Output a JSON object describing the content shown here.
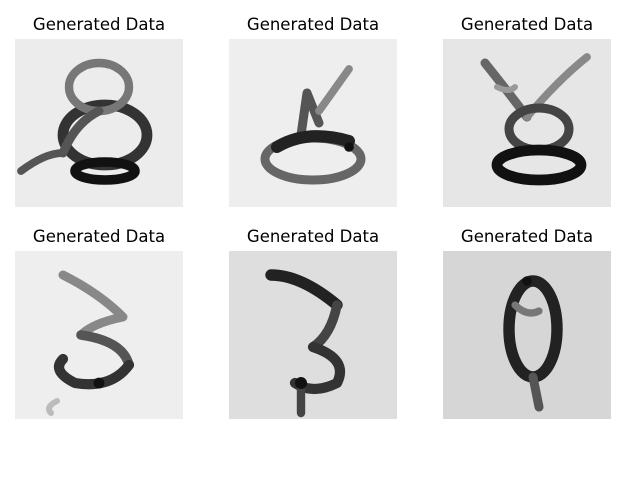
{
  "panels": [
    {
      "title": "Generated Data",
      "digit": "8",
      "background": "#ececec"
    },
    {
      "title": "Generated Data",
      "digit": "2",
      "background": "#eeeeee"
    },
    {
      "title": "Generated Data",
      "digit": "8",
      "background": "#e6e6e6"
    },
    {
      "title": "Generated Data",
      "digit": "3",
      "background": "#eeeeee"
    },
    {
      "title": "Generated Data",
      "digit": "3",
      "background": "#dedede"
    },
    {
      "title": "Generated Data",
      "digit": "0",
      "background": "#d6d6d6"
    }
  ]
}
